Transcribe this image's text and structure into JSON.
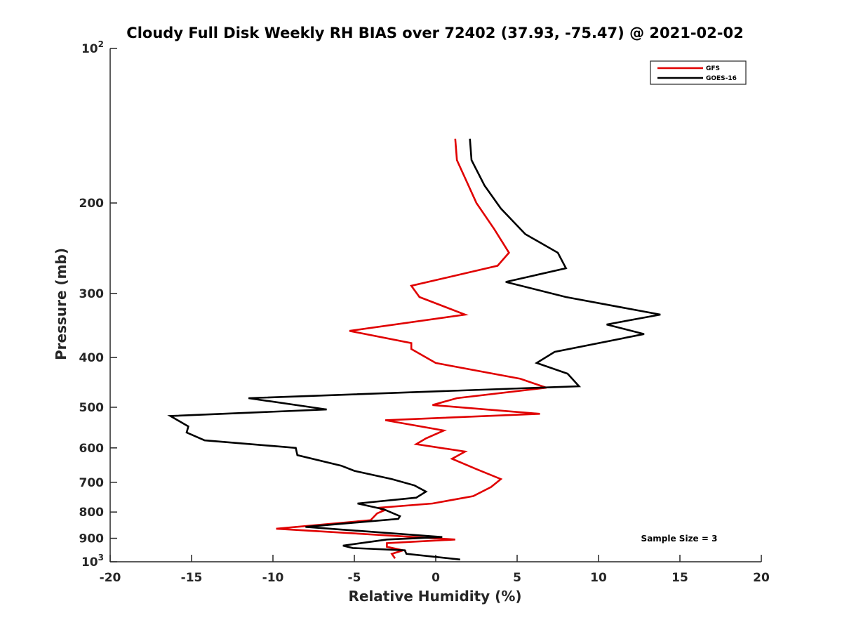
{
  "chart_data": {
    "type": "line",
    "title": "Cloudy Full Disk Weekly RH BIAS over 72402 (37.93, -75.47) @ 2021-02-02",
    "xlabel": "Relative Humidity (%)",
    "ylabel": "Pressure (mb)",
    "xlim": [
      -20,
      20
    ],
    "ylim": [
      100,
      1000
    ],
    "y_scale": "log",
    "y_reversed": true,
    "x_ticks": [
      "-20",
      "-15",
      "-10",
      "-5",
      "0",
      "5",
      "10",
      "15",
      "20"
    ],
    "y_ticks": [
      {
        "value": 100,
        "base": "10",
        "exp": "2"
      },
      {
        "value": 200,
        "label": "200"
      },
      {
        "value": 300,
        "label": "300"
      },
      {
        "value": 400,
        "label": "400"
      },
      {
        "value": 500,
        "label": "500"
      },
      {
        "value": 600,
        "label": "600"
      },
      {
        "value": 700,
        "label": "700"
      },
      {
        "value": 800,
        "label": "800"
      },
      {
        "value": 900,
        "label": "900"
      },
      {
        "value": 1000,
        "base": "10",
        "exp": "3"
      }
    ],
    "grid": false,
    "legend_position": "top-right",
    "annotation": "Sample Size = 3",
    "series": [
      {
        "name": "GFS",
        "color": "#e00000",
        "points": [
          [
            1.2,
            150
          ],
          [
            1.3,
            165
          ],
          [
            2.5,
            200
          ],
          [
            3.6,
            225
          ],
          [
            4.5,
            250
          ],
          [
            3.8,
            265
          ],
          [
            -1.5,
            290
          ],
          [
            -1,
            305
          ],
          [
            1.8,
            330
          ],
          [
            -5.3,
            355
          ],
          [
            -1.5,
            375
          ],
          [
            -1.5,
            385
          ],
          [
            0,
            410
          ],
          [
            5.2,
            440
          ],
          [
            6.8,
            458
          ],
          [
            1.3,
            480
          ],
          [
            -0.2,
            495
          ],
          [
            6.4,
            515
          ],
          [
            -3.1,
            530
          ],
          [
            0.5,
            555
          ],
          [
            -0.6,
            575
          ],
          [
            -1.2,
            590
          ],
          [
            1.8,
            610
          ],
          [
            1,
            630
          ],
          [
            2.5,
            660
          ],
          [
            4,
            690
          ],
          [
            3.4,
            715
          ],
          [
            2.3,
            745
          ],
          [
            -0.2,
            770
          ],
          [
            -3.5,
            785
          ],
          [
            -3.2,
            795
          ],
          [
            -3.6,
            805
          ],
          [
            -4,
            830
          ],
          [
            -9.8,
            862
          ],
          [
            1.2,
            905
          ],
          [
            -3,
            920
          ],
          [
            -3,
            935
          ],
          [
            -2,
            950
          ],
          [
            -2.7,
            965
          ],
          [
            -2.5,
            985
          ]
        ]
      },
      {
        "name": "GOES-16",
        "color": "#000000",
        "points": [
          [
            2.1,
            150
          ],
          [
            2.2,
            165
          ],
          [
            3,
            185
          ],
          [
            4,
            205
          ],
          [
            5.5,
            230
          ],
          [
            7.5,
            250
          ],
          [
            8,
            268
          ],
          [
            4.3,
            285
          ],
          [
            8,
            305
          ],
          [
            13.8,
            330
          ],
          [
            10.5,
            345
          ],
          [
            12.8,
            360
          ],
          [
            7.3,
            390
          ],
          [
            6.2,
            410
          ],
          [
            8.1,
            430
          ],
          [
            8.8,
            455
          ],
          [
            -11.5,
            480
          ],
          [
            -6.7,
            505
          ],
          [
            -16.3,
            520
          ],
          [
            -15.2,
            545
          ],
          [
            -15.3,
            560
          ],
          [
            -14.2,
            580
          ],
          [
            -8.6,
            600
          ],
          [
            -8.5,
            620
          ],
          [
            -5.8,
            650
          ],
          [
            -5,
            665
          ],
          [
            -2.7,
            690
          ],
          [
            -1.3,
            710
          ],
          [
            -0.6,
            730
          ],
          [
            -1.2,
            750
          ],
          [
            -4.8,
            770
          ],
          [
            -3.2,
            790
          ],
          [
            -2.2,
            815
          ],
          [
            -2.3,
            825
          ],
          [
            -8,
            855
          ],
          [
            0.4,
            895
          ],
          [
            -3,
            905
          ],
          [
            -5.7,
            930
          ],
          [
            -5.1,
            940
          ],
          [
            -1.9,
            950
          ],
          [
            -1.8,
            965
          ],
          [
            1.5,
            990
          ]
        ]
      }
    ]
  }
}
